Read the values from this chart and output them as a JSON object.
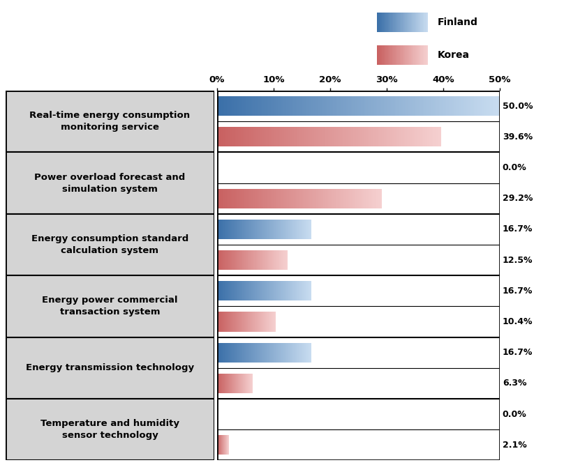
{
  "categories": [
    "Real-time energy consumption\nmonitoring service",
    "Power overload forecast and\nsimulation system",
    "Energy consumption standard\ncalculation system",
    "Energy power commercial\ntransaction system",
    "Energy transmission technology",
    "Temperature and humidity\nsensor technology"
  ],
  "finland_values": [
    50.0,
    0.0,
    16.7,
    16.7,
    16.7,
    0.0
  ],
  "korea_values": [
    39.6,
    29.2,
    12.5,
    10.4,
    6.3,
    2.1
  ],
  "finland_color_dark": "#3a6fa8",
  "finland_color_light": "#c8dcf0",
  "korea_color_dark": "#c86060",
  "korea_color_light": "#f5d0d0",
  "xlim": [
    0,
    50
  ],
  "xticks": [
    0,
    10,
    20,
    30,
    40,
    50
  ],
  "xticklabels": [
    "0%",
    "10%",
    "20%",
    "30%",
    "40%",
    "50%"
  ],
  "value_label_color": "#000000",
  "bg_color": "#d4d4d4",
  "bar_bg_color": "#ffffff",
  "border_color": "#000000",
  "finland_label": "Finland",
  "korea_label": "Korea",
  "legend_fin_color_dark": "#3a6fa8",
  "legend_fin_color_light": "#c8dcf0",
  "legend_kor_color_dark": "#c86060",
  "legend_kor_color_light": "#f5d0d0"
}
